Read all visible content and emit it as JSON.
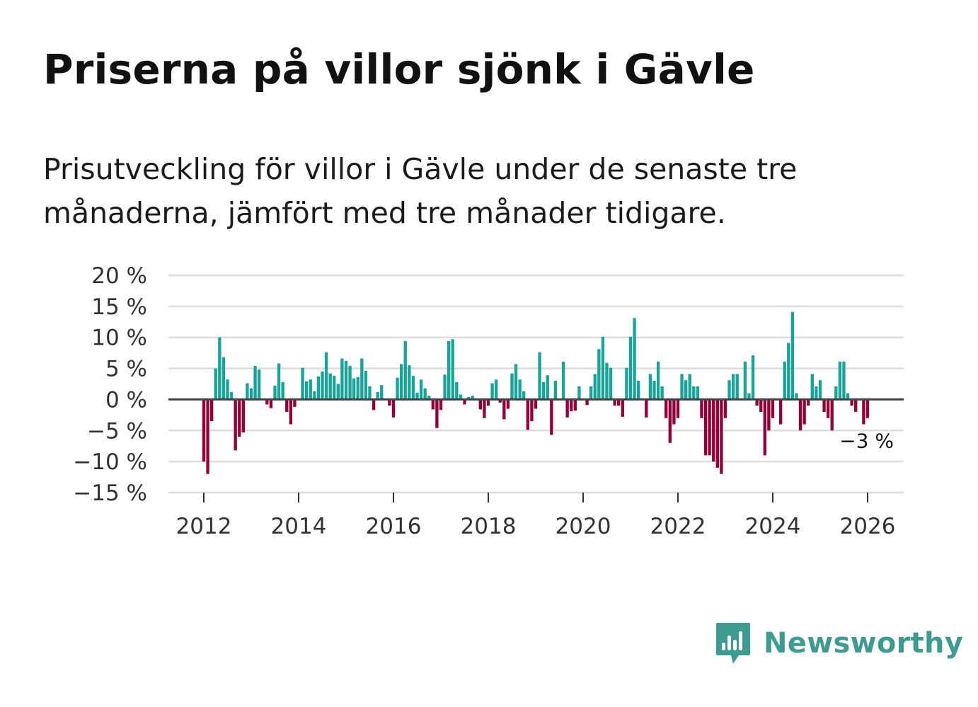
{
  "header": {
    "title": "Priserna på villor sjönk i Gävle",
    "subtitle": "Prisutveckling för villor i Gävle under de senaste tre månaderna, jämfört med tre månader tidigare."
  },
  "brand": {
    "name": "Newsworthy",
    "icon": "newsworthy-chart-icon"
  },
  "colors": {
    "positive": "#17a499",
    "negative": "#960038",
    "grid": "#dddddd",
    "zero_line": "#444444",
    "brand": "#3d9c8f"
  },
  "chart_data": {
    "type": "bar",
    "title": "Priserna på villor sjönk i Gävle",
    "xlabel": "",
    "ylabel": "",
    "ylim": [
      -15,
      20
    ],
    "yticks": [
      20,
      15,
      10,
      5,
      0,
      -5,
      -10,
      -15
    ],
    "ytick_labels": [
      "20 %",
      "15 %",
      "10 %",
      "5 %",
      "0 %",
      "−5 %",
      "−10 %",
      "−15 %"
    ],
    "xticks": [
      2012,
      2014,
      2016,
      2018,
      2020,
      2022,
      2024,
      2026
    ],
    "xtick_labels": [
      "2012",
      "2014",
      "2016",
      "2018",
      "2020",
      "2022",
      "2024",
      "2026"
    ],
    "start": 2012.0,
    "step_years": 0.08333,
    "grid": true,
    "legend": "none",
    "last_value_label": "−3 %",
    "values": [
      -10,
      -12,
      -3.5,
      5,
      10,
      6.8,
      3.2,
      1.2,
      -8.2,
      -6,
      -5.3,
      2.6,
      1.8,
      5.4,
      4.8,
      0,
      -0.8,
      -1.4,
      2.2,
      5.8,
      2.8,
      -2,
      -4,
      -1.2,
      0,
      5.1,
      2.9,
      3.2,
      1.3,
      3.7,
      4.5,
      7.6,
      4.2,
      3.8,
      2.5,
      6.6,
      6.2,
      5.4,
      3.4,
      3.6,
      6.6,
      4.6,
      2.1,
      -1.7,
      1.2,
      2.3,
      0,
      -1,
      -2.9,
      3.5,
      5.7,
      9.4,
      5.5,
      3.8,
      1.1,
      3.2,
      1.8,
      0.6,
      -1.6,
      -4.6,
      -1.7,
      4,
      9.4,
      9.7,
      2.8,
      0.8,
      -0.8,
      0.4,
      0.6,
      0,
      -1.6,
      -3,
      -1,
      2.6,
      3.2,
      -0.5,
      -3.2,
      -1.5,
      4.2,
      5.7,
      3.2,
      1.3,
      -4.9,
      -3.5,
      -1.5,
      7.6,
      2.8,
      3.9,
      -5.7,
      3,
      0,
      6.1,
      -2.9,
      -1.9,
      -1.8,
      2.1,
      0,
      -0.9,
      2.1,
      4.1,
      8.1,
      10.1,
      5.9,
      5.1,
      -1,
      -1,
      -2.8,
      5.1,
      10.1,
      13.1,
      3,
      0,
      -2.9,
      4.1,
      3,
      6.1,
      2.1,
      -3,
      -7,
      -4,
      -3,
      4.1,
      3.1,
      4.1,
      2.1,
      2.1,
      -3,
      -9,
      -9,
      -10,
      -11,
      -12,
      -3,
      3.1,
      4.1,
      4.1,
      0,
      6.1,
      1,
      7.1,
      -1,
      -2,
      -9,
      -5,
      -3,
      0,
      -4,
      6.1,
      9.1,
      14.1,
      1,
      -5,
      -4,
      -1,
      4.1,
      2.1,
      3.1,
      -2,
      -3,
      -5,
      2.1,
      6.1,
      6.1,
      1,
      -1,
      -2,
      0,
      -4,
      -3
    ]
  }
}
